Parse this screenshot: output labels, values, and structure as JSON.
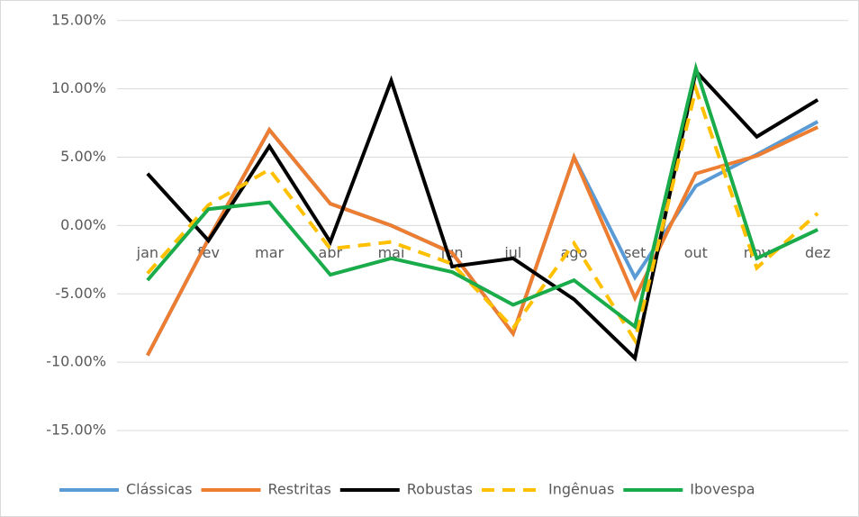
{
  "chart_data": {
    "type": "line",
    "categories": [
      "jan",
      "fev",
      "mar",
      "abr",
      "mai",
      "jun",
      "jul",
      "ago",
      "set",
      "out",
      "nov",
      "dez"
    ],
    "series": [
      {
        "name": "Clássicas",
        "color": "#5b9bd5",
        "values": [
          -9.5,
          -1.0,
          7.0,
          1.6,
          0.0,
          -2.0,
          -7.9,
          5.0,
          -3.8,
          2.9,
          5.2,
          7.6
        ]
      },
      {
        "name": "Restritas",
        "color": "#ed7d31",
        "values": [
          -9.5,
          -1.0,
          7.0,
          1.6,
          0.0,
          -2.0,
          -7.9,
          5.0,
          -5.3,
          3.8,
          5.1,
          7.2
        ]
      },
      {
        "name": "Robustas",
        "color": "#000000",
        "values": [
          3.8,
          -1.1,
          5.8,
          -1.2,
          10.6,
          -3.0,
          -2.4,
          -5.4,
          -9.7,
          11.3,
          6.5,
          9.2
        ]
      },
      {
        "name": "Ingênuas",
        "color": "#ffc000",
        "dashed": true,
        "values": [
          -3.5,
          1.5,
          4.1,
          -1.7,
          -1.2,
          -2.8,
          -7.5,
          -1.3,
          -8.4,
          10.0,
          -3.1,
          0.9
        ]
      },
      {
        "name": "Ibovespa",
        "color": "#1aab4a",
        "values": [
          -4.0,
          1.2,
          1.7,
          -3.6,
          -2.4,
          -3.4,
          -5.8,
          -4.0,
          -7.4,
          11.5,
          -2.4,
          -0.3
        ]
      }
    ],
    "ylim": [
      -17.5,
      16.5
    ],
    "yticks": [
      {
        "value": 15,
        "label": "15.00%"
      },
      {
        "value": 10,
        "label": "10.00%"
      },
      {
        "value": 5,
        "label": "5.00%"
      },
      {
        "value": 0,
        "label": "0.00%"
      },
      {
        "value": -5,
        "label": "-5.00%"
      },
      {
        "value": -10,
        "label": "-10.00%"
      },
      {
        "value": -15,
        "label": "-15.00%"
      }
    ],
    "grid": true,
    "legend": "bottom"
  }
}
